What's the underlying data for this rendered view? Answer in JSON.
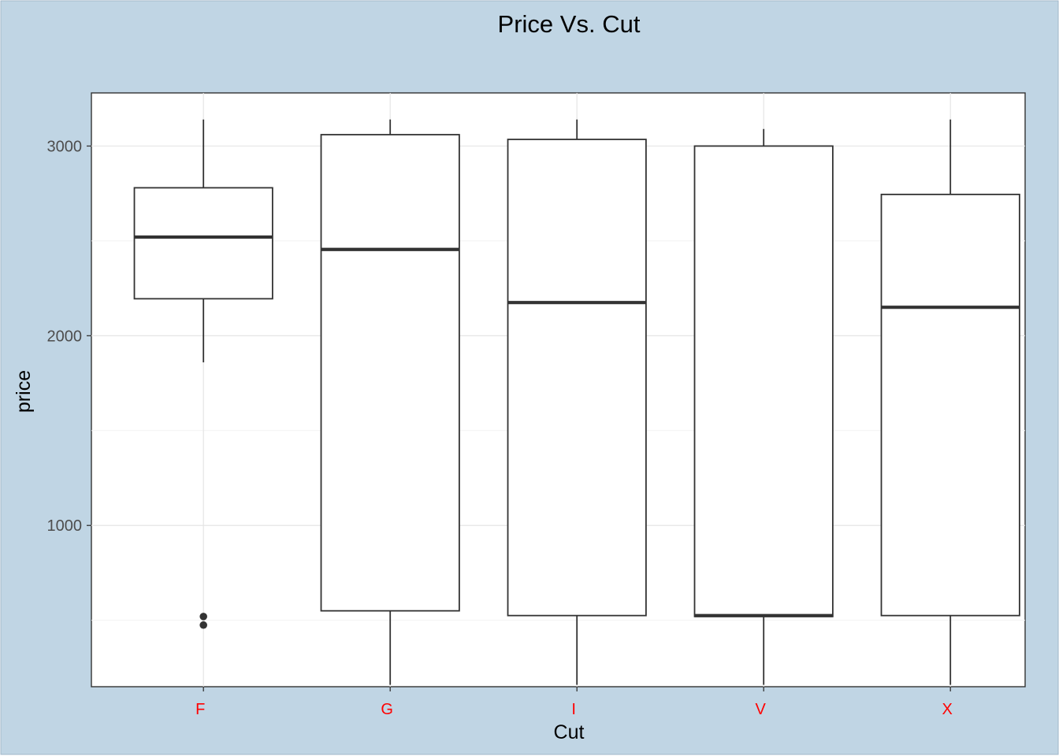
{
  "chart_data": {
    "type": "box",
    "title": "Price Vs. Cut",
    "xlabel": "Cut",
    "ylabel": "price",
    "ylim": [
      150,
      3280
    ],
    "y_ticks": [
      1000,
      2000,
      3000
    ],
    "grid": true,
    "colors": {
      "background": "#c0d5e4",
      "panel": "#ffffff",
      "box_stroke": "#333333",
      "x_tick_labels": "#ff0000",
      "y_tick_labels": "#4d4d4d"
    },
    "categories": [
      "F",
      "G",
      "I",
      "V",
      "X"
    ],
    "series": [
      {
        "category": "F",
        "whisker_low": 1860,
        "q1": 2195,
        "median": 2520,
        "q3": 2780,
        "whisker_high": 3140,
        "outliers": [
          520,
          475
        ]
      },
      {
        "category": "G",
        "whisker_low": 160,
        "q1": 550,
        "median": 2455,
        "q3": 3060,
        "whisker_high": 3140,
        "outliers": []
      },
      {
        "category": "I",
        "whisker_low": 160,
        "q1": 525,
        "median": 2175,
        "q3": 3035,
        "whisker_high": 3140,
        "outliers": []
      },
      {
        "category": "V",
        "whisker_low": 160,
        "q1": 520,
        "median": 525,
        "q3": 3000,
        "whisker_high": 3090,
        "outliers": []
      },
      {
        "category": "X",
        "whisker_low": 160,
        "q1": 525,
        "median": 2150,
        "q3": 2745,
        "whisker_high": 3140,
        "outliers": []
      }
    ]
  }
}
